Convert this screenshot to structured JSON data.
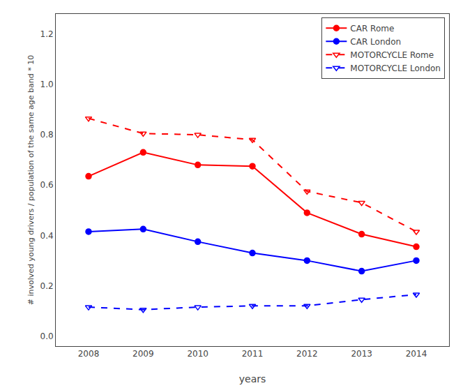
{
  "chart_data": {
    "type": "line",
    "x": [
      2008,
      2009,
      2010,
      2011,
      2012,
      2013,
      2014
    ],
    "series": [
      {
        "name": "CAR Rome",
        "color": "#FF0000",
        "marker": "circle",
        "line_style": "solid",
        "values": [
          0.635,
          0.73,
          0.68,
          0.675,
          0.49,
          0.405,
          0.355
        ]
      },
      {
        "name": "CAR London",
        "color": "#0000FF",
        "marker": "circle",
        "line_style": "solid",
        "values": [
          0.415,
          0.425,
          0.375,
          0.33,
          0.3,
          0.258,
          0.3
        ]
      },
      {
        "name": "MOTORCYCLE Rome",
        "color": "#FF0000",
        "marker": "triangle-down-open",
        "line_style": "dash",
        "values": [
          0.865,
          0.805,
          0.8,
          0.78,
          0.575,
          0.53,
          0.415
        ]
      },
      {
        "name": "MOTORCYCLE London",
        "color": "#0000FF",
        "marker": "triangle-down-open",
        "line_style": "dash",
        "values": [
          0.115,
          0.105,
          0.115,
          0.12,
          0.12,
          0.145,
          0.165
        ]
      }
    ],
    "x_label": "years",
    "y_label": "# involved young drivers / population of the same age band * 10",
    "xlim": [
      2007.4,
      2014.6
    ],
    "xticks": [
      2008,
      2009,
      2010,
      2011,
      2012,
      2013,
      2014
    ],
    "ylim": [
      -0.04,
      1.28
    ],
    "yticks": [
      {
        "value": 0.0,
        "label": "0.0"
      },
      0.2,
      0.4,
      0.6,
      0.8,
      {
        "value": 1.0,
        "label": "1.0"
      },
      1.2
    ],
    "grid": false,
    "legend": "upper right"
  }
}
